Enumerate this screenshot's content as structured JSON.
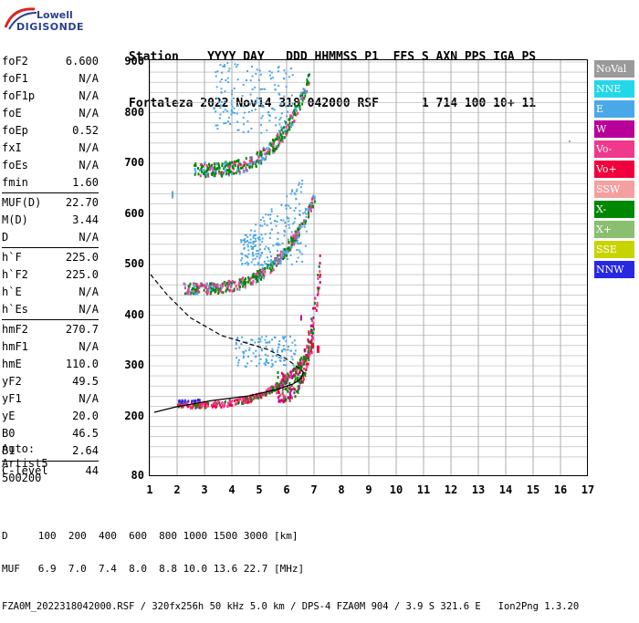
{
  "logo": {
    "line1": "Lowell",
    "line2": "DIGISONDE"
  },
  "header": {
    "line1": "Station    YYYY DAY   DDD HHMMSS P1  FFS S AXN PPS IGA PS",
    "line2": "Fortaleza 2022 Nov14 318 042000 RSF      1 714 100 10+ 11"
  },
  "params": {
    "group1": [
      {
        "label": "foF2",
        "value": "6.600"
      },
      {
        "label": "foF1",
        "value": "N/A"
      },
      {
        "label": "foF1p",
        "value": "N/A"
      },
      {
        "label": "foE",
        "value": "N/A"
      },
      {
        "label": "foEp",
        "value": "0.52"
      },
      {
        "label": "fxI",
        "value": "N/A"
      },
      {
        "label": "foEs",
        "value": "N/A"
      },
      {
        "label": "fmin",
        "value": "1.60"
      }
    ],
    "group2": [
      {
        "label": "MUF(D)",
        "value": "22.70"
      },
      {
        "label": "M(D)",
        "value": "3.44"
      },
      {
        "label": "D",
        "value": "N/A"
      }
    ],
    "group3": [
      {
        "label": "h`F",
        "value": "225.0"
      },
      {
        "label": "h`F2",
        "value": "225.0"
      },
      {
        "label": "h`E",
        "value": "N/A"
      },
      {
        "label": "h`Es",
        "value": "N/A"
      }
    ],
    "group4": [
      {
        "label": "hmF2",
        "value": "270.7"
      },
      {
        "label": "hmF1",
        "value": "N/A"
      },
      {
        "label": "hmE",
        "value": "110.0"
      },
      {
        "label": "yF2",
        "value": "49.5"
      },
      {
        "label": "yF1",
        "value": "N/A"
      },
      {
        "label": "yE",
        "value": "20.0"
      },
      {
        "label": "B0",
        "value": "46.5"
      },
      {
        "label": "B1",
        "value": "2.64"
      }
    ],
    "group5": [
      {
        "label": "C-level",
        "value": "44"
      }
    ]
  },
  "auto": {
    "line1": "Auto:",
    "line2": "Artist5",
    "line3": "500200"
  },
  "axes": {
    "y_ticks": [
      "900",
      "800",
      "700",
      "600",
      "500",
      "400",
      "300",
      "200",
      "80"
    ],
    "x_ticks": [
      "1",
      "2",
      "3",
      "4",
      "5",
      "6",
      "7",
      "8",
      "9",
      "10",
      "11",
      "12",
      "13",
      "14",
      "15",
      "16",
      "17"
    ]
  },
  "legend": [
    {
      "label": "NoVal",
      "color": "#9a9a9a"
    },
    {
      "label": "NNE",
      "color": "#22d8e8"
    },
    {
      "label": "E",
      "color": "#4aa8e8"
    },
    {
      "label": "W",
      "color": "#b80098"
    },
    {
      "label": "Vo-",
      "color": "#f0388c"
    },
    {
      "label": "Vo+",
      "color": "#f0003c"
    },
    {
      "label": "SSW",
      "color": "#f4a0a0"
    },
    {
      "label": "X-",
      "color": "#008800"
    },
    {
      "label": "X+",
      "color": "#88c070"
    },
    {
      "label": "SSE",
      "color": "#c8d400"
    },
    {
      "label": "NNW",
      "color": "#2828e0"
    }
  ],
  "footer": {
    "line1": "D     100  200  400  600  800 1000 1500 3000 [km]",
    "line2": "MUF   6.9  7.0  7.4  8.0  8.8 10.0 13.6 22.7 [MHz]",
    "line3": "FZA0M_2022318042000.RSF / 320fx256h 50 kHz 5.0 km / DPS-4 FZA0M 904 / 3.9 S 321.6 E   Ion2Png 1.3.20"
  }
}
